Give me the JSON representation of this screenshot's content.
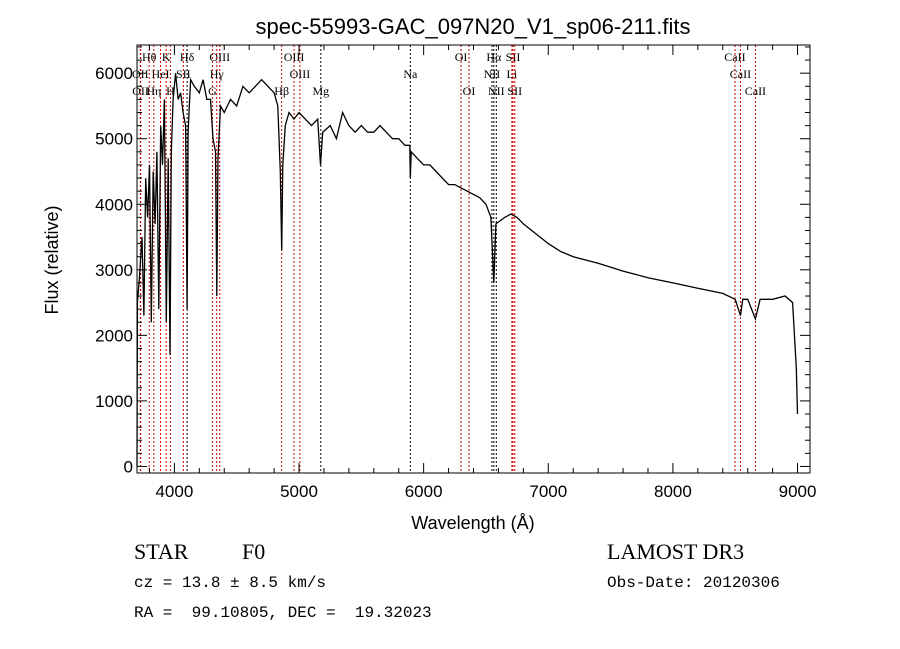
{
  "chart_data": {
    "type": "line",
    "title": "spec-55993-GAC_097N20_V1_sp06-211.fits",
    "xlabel": "Wavelength (Å)",
    "ylabel": "Flux (relative)",
    "xlim": [
      3700,
      9100
    ],
    "ylim": [
      -100,
      6430
    ],
    "xticks": [
      4000,
      5000,
      6000,
      7000,
      8000,
      9000
    ],
    "yticks": [
      0,
      1000,
      2000,
      3000,
      4000,
      5000,
      6000
    ],
    "grid": false,
    "series": [
      {
        "name": "spectrum",
        "color": "#000000",
        "points": [
          [
            3700,
            0
          ],
          [
            3703,
            2500
          ],
          [
            3720,
            2900
          ],
          [
            3740,
            3500
          ],
          [
            3755,
            2300
          ],
          [
            3770,
            4400
          ],
          [
            3785,
            3800
          ],
          [
            3800,
            4600
          ],
          [
            3815,
            2200
          ],
          [
            3830,
            4500
          ],
          [
            3845,
            3700
          ],
          [
            3860,
            4800
          ],
          [
            3875,
            2400
          ],
          [
            3890,
            5200
          ],
          [
            3905,
            4600
          ],
          [
            3920,
            5600
          ],
          [
            3935,
            2200
          ],
          [
            3950,
            4700
          ],
          [
            3965,
            1700
          ],
          [
            3975,
            4800
          ],
          [
            3990,
            5600
          ],
          [
            4010,
            6000
          ],
          [
            4030,
            5600
          ],
          [
            4050,
            5700
          ],
          [
            4070,
            5400
          ],
          [
            4090,
            5200
          ],
          [
            4102,
            2400
          ],
          [
            4110,
            5100
          ],
          [
            4130,
            5900
          ],
          [
            4160,
            5800
          ],
          [
            4200,
            5700
          ],
          [
            4230,
            5900
          ],
          [
            4260,
            5600
          ],
          [
            4290,
            5600
          ],
          [
            4310,
            5000
          ],
          [
            4330,
            4800
          ],
          [
            4340,
            2600
          ],
          [
            4350,
            4700
          ],
          [
            4370,
            5500
          ],
          [
            4400,
            5400
          ],
          [
            4450,
            5600
          ],
          [
            4500,
            5500
          ],
          [
            4550,
            5800
          ],
          [
            4600,
            5700
          ],
          [
            4650,
            5800
          ],
          [
            4700,
            5900
          ],
          [
            4750,
            5800
          ],
          [
            4800,
            5700
          ],
          [
            4830,
            5500
          ],
          [
            4850,
            4500
          ],
          [
            4861,
            3300
          ],
          [
            4870,
            4600
          ],
          [
            4890,
            5200
          ],
          [
            4920,
            5400
          ],
          [
            4960,
            5300
          ],
          [
            5000,
            5400
          ],
          [
            5050,
            5300
          ],
          [
            5100,
            5200
          ],
          [
            5150,
            5300
          ],
          [
            5172,
            4600
          ],
          [
            5190,
            5100
          ],
          [
            5250,
            5200
          ],
          [
            5300,
            5000
          ],
          [
            5350,
            5400
          ],
          [
            5400,
            5200
          ],
          [
            5450,
            5100
          ],
          [
            5500,
            5200
          ],
          [
            5550,
            5100
          ],
          [
            5600,
            5100
          ],
          [
            5650,
            5200
          ],
          [
            5700,
            5100
          ],
          [
            5750,
            5000
          ],
          [
            5800,
            5000
          ],
          [
            5850,
            4900
          ],
          [
            5889,
            4900
          ],
          [
            5893,
            4400
          ],
          [
            5900,
            4800
          ],
          [
            5950,
            4700
          ],
          [
            6000,
            4600
          ],
          [
            6050,
            4600
          ],
          [
            6100,
            4500
          ],
          [
            6150,
            4400
          ],
          [
            6200,
            4300
          ],
          [
            6250,
            4300
          ],
          [
            6300,
            4250
          ],
          [
            6350,
            4200
          ],
          [
            6400,
            4150
          ],
          [
            6450,
            4100
          ],
          [
            6500,
            4000
          ],
          [
            6540,
            3800
          ],
          [
            6563,
            2800
          ],
          [
            6580,
            3700
          ],
          [
            6650,
            3800
          ],
          [
            6700,
            3850
          ],
          [
            6750,
            3800
          ],
          [
            6800,
            3700
          ],
          [
            6900,
            3550
          ],
          [
            7000,
            3400
          ],
          [
            7100,
            3280
          ],
          [
            7200,
            3200
          ],
          [
            7400,
            3100
          ],
          [
            7600,
            2980
          ],
          [
            7800,
            2880
          ],
          [
            8000,
            2800
          ],
          [
            8200,
            2720
          ],
          [
            8400,
            2640
          ],
          [
            8500,
            2550
          ],
          [
            8542,
            2300
          ],
          [
            8560,
            2550
          ],
          [
            8600,
            2550
          ],
          [
            8662,
            2250
          ],
          [
            8700,
            2550
          ],
          [
            8800,
            2550
          ],
          [
            8900,
            2600
          ],
          [
            8960,
            2500
          ],
          [
            8990,
            1500
          ],
          [
            9000,
            800
          ]
        ]
      }
    ],
    "lines": [
      {
        "label": "Hθ",
        "wl": 3798,
        "row": 0,
        "color": "#cc0000"
      },
      {
        "label": "K",
        "wl": 3934,
        "row": 0,
        "color": "#cc0000"
      },
      {
        "label": "Hδ",
        "wl": 4102,
        "row": 0,
        "color": "#000000"
      },
      {
        "label": "OIII",
        "wl": 4364,
        "row": 0,
        "color": "#cc0000"
      },
      {
        "label": "OIII",
        "wl": 4960,
        "row": 0,
        "color": "#cc0000"
      },
      {
        "label": "OI",
        "wl": 6300,
        "row": 0,
        "color": "#cc0000"
      },
      {
        "label": "Hα",
        "wl": 6563,
        "row": 0,
        "color": "#000000"
      },
      {
        "label": "SII",
        "wl": 6717,
        "row": 0,
        "color": "#cc0000"
      },
      {
        "label": "CaII",
        "wl": 8498,
        "row": 0,
        "color": "#cc0000"
      },
      {
        "label": "OII",
        "wl": 3727,
        "row": 1,
        "color": "#cc0000"
      },
      {
        "label": "HeI",
        "wl": 3889,
        "row": 1,
        "color": "#cc0000"
      },
      {
        "label": "SII",
        "wl": 4072,
        "row": 1,
        "color": "#cc0000"
      },
      {
        "label": "Hγ",
        "wl": 4340,
        "row": 1,
        "color": "#cc0000"
      },
      {
        "label": "OIII",
        "wl": 5007,
        "row": 1,
        "color": "#cc0000"
      },
      {
        "label": "Na",
        "wl": 5893,
        "row": 1,
        "color": "#000000"
      },
      {
        "label": "NII",
        "wl": 6548,
        "row": 1,
        "color": "#000000"
      },
      {
        "label": "Li",
        "wl": 6708,
        "row": 1,
        "color": "#cc0000"
      },
      {
        "label": "CaII",
        "wl": 8542,
        "row": 1,
        "color": "#cc0000"
      },
      {
        "label": "OII",
        "wl": 3729,
        "row": 2,
        "color": "#cc0000"
      },
      {
        "label": "Hη",
        "wl": 3835,
        "row": 2,
        "color": "#cc0000"
      },
      {
        "label": "H",
        "wl": 3968,
        "row": 2,
        "color": "#cc0000"
      },
      {
        "label": "G",
        "wl": 4305,
        "row": 2,
        "color": "#cc0000"
      },
      {
        "label": "Hβ",
        "wl": 4861,
        "row": 2,
        "color": "#cc0000"
      },
      {
        "label": "Mg",
        "wl": 5175,
        "row": 2,
        "color": "#000000"
      },
      {
        "label": "OI",
        "wl": 6364,
        "row": 2,
        "color": "#cc0000"
      },
      {
        "label": "NII",
        "wl": 6583,
        "row": 2,
        "color": "#000000"
      },
      {
        "label": "SII",
        "wl": 6731,
        "row": 2,
        "color": "#cc0000"
      },
      {
        "label": "CaII",
        "wl": 8662,
        "row": 2,
        "color": "#cc0000"
      }
    ]
  },
  "info": {
    "class": "STAR",
    "subclass": "F0",
    "survey": "LAMOST DR3",
    "cz": "cz = 13.8 ± 8.5 km/s",
    "obs_date": "Obs-Date: 20120306",
    "coords": "RA =  99.10805, DEC =  19.32023"
  }
}
